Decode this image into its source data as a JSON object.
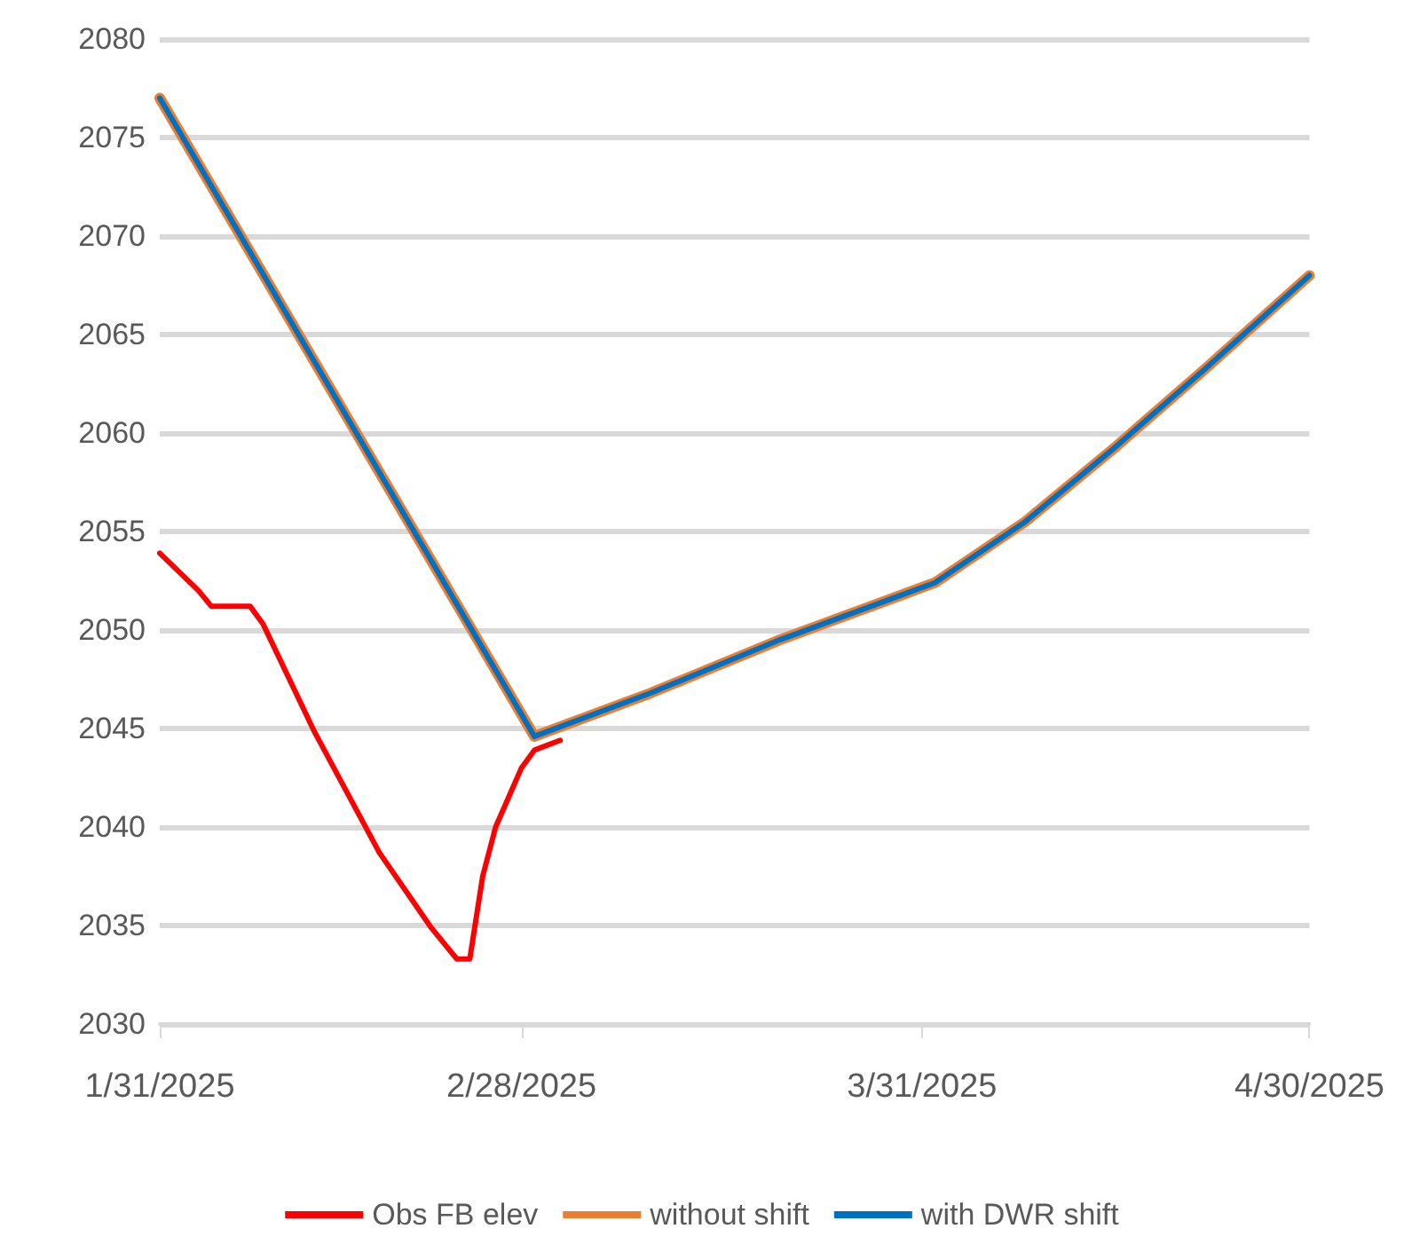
{
  "chart_data": {
    "type": "line",
    "xlim": [
      "2025-01-31",
      "2025-04-30"
    ],
    "xticks": [
      {
        "value": "2025-01-31",
        "label": "1/31/2025"
      },
      {
        "value": "2025-02-28",
        "label": "2/28/2025"
      },
      {
        "value": "2025-03-31",
        "label": "3/31/2025"
      },
      {
        "value": "2025-04-30",
        "label": "4/30/2025"
      }
    ],
    "ylim": [
      2030,
      2080
    ],
    "yticks": [
      2030,
      2035,
      2040,
      2045,
      2050,
      2055,
      2060,
      2065,
      2070,
      2075,
      2080
    ],
    "grid": "y",
    "legend": "bottom",
    "series": [
      {
        "name": "Obs FB elev",
        "color": "#ff0000",
        "x": [
          "2025-01-31",
          "2025-02-03",
          "2025-02-04",
          "2025-02-07",
          "2025-02-08",
          "2025-02-12",
          "2025-02-17",
          "2025-02-21",
          "2025-02-23",
          "2025-02-24",
          "2025-02-25",
          "2025-02-26",
          "2025-02-27",
          "2025-02-28",
          "2025-03-01",
          "2025-03-03"
        ],
        "values": [
          2053.9,
          2052,
          2051.2,
          2051.2,
          2050.3,
          2044.8,
          2038.7,
          2034.9,
          2033.3,
          2033.3,
          2037.5,
          2040,
          2041.5,
          2043,
          2043.9,
          2044.4
        ]
      },
      {
        "name": "without shift",
        "color": "#ed7d31",
        "x": [
          "2025-01-31",
          "2025-03-01",
          "2025-03-10",
          "2025-03-20",
          "2025-04-01",
          "2025-04-08",
          "2025-04-15",
          "2025-04-22",
          "2025-04-30"
        ],
        "values": [
          2077,
          2044.6,
          2046.8,
          2049.5,
          2052.4,
          2055.5,
          2059.3,
          2063.3,
          2068
        ]
      },
      {
        "name": "with DWR shift",
        "color": "#0070c0",
        "x": [
          "2025-01-31",
          "2025-03-01",
          "2025-03-10",
          "2025-03-20",
          "2025-04-01",
          "2025-04-08",
          "2025-04-15",
          "2025-04-22",
          "2025-04-30"
        ],
        "values": [
          2077,
          2044.6,
          2046.8,
          2049.5,
          2052.4,
          2055.5,
          2059.3,
          2063.3,
          2068
        ]
      }
    ]
  }
}
